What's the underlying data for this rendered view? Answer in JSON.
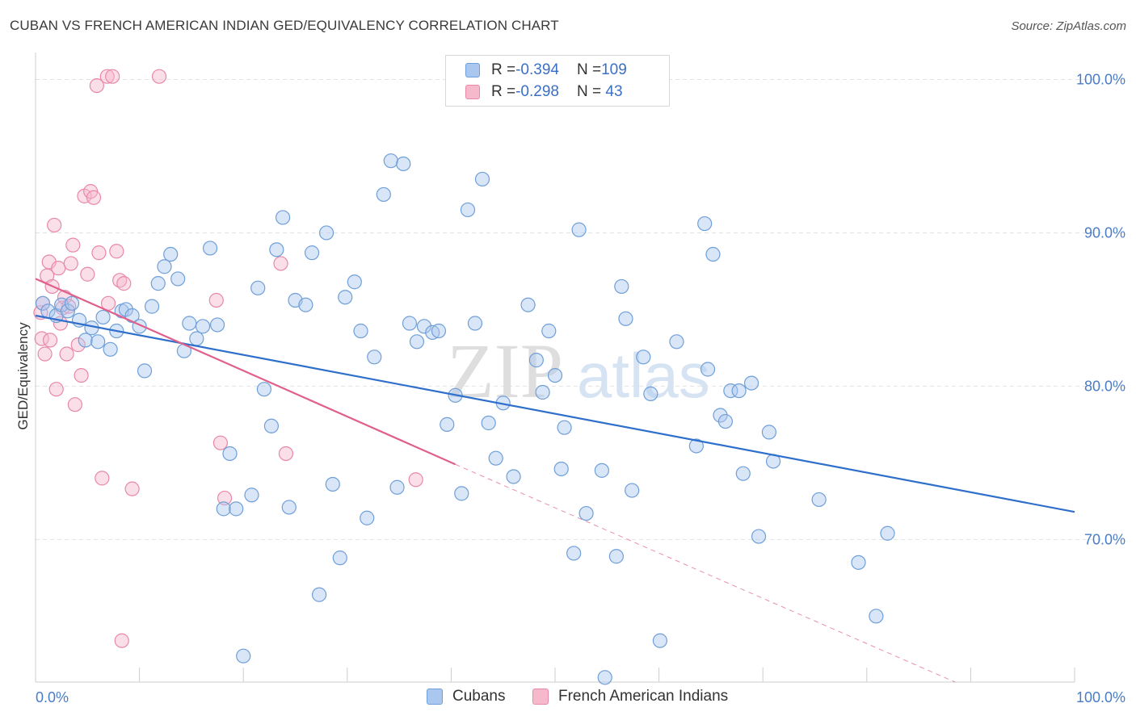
{
  "title": "CUBAN VS FRENCH AMERICAN INDIAN GED/EQUIVALENCY CORRELATION CHART",
  "source": "Source: ZipAtlas.com",
  "watermark": {
    "zip": "ZIP",
    "atlas": "atlas"
  },
  "colors": {
    "blue_fill": "#aac8ef",
    "blue_stroke": "#6f9fd8",
    "blue_line": "#2f6fcc",
    "pink_fill": "#f6b8cb",
    "pink_stroke": "#e888a8",
    "pink_line": "#e0608a",
    "grid": "#e2e2e2",
    "tick_text": "#4a7cc7"
  },
  "legend_top": {
    "rows": [
      {
        "r_label": "R = ",
        "r_value": "-0.394",
        "n_label": "N = ",
        "n_value": "109"
      },
      {
        "r_label": "R = ",
        "r_value": "-0.298",
        "n_label": "N = ",
        "n_value": " 43"
      }
    ]
  },
  "legend_bottom": [
    "Cubans",
    "French American Indians"
  ],
  "chart_data": {
    "type": "scatter",
    "title": "CUBAN VS FRENCH AMERICAN INDIAN GED/EQUIVALENCY CORRELATION CHART",
    "xlabel": "",
    "ylabel": "GED/Equivalency",
    "xlim": [
      0,
      100
    ],
    "ylim": [
      60.7,
      101.5
    ],
    "x_ticks": [
      "0.0%",
      "100.0%"
    ],
    "y_ticks": [
      {
        "value": 70,
        "label": "70.0%"
      },
      {
        "value": 80,
        "label": "80.0%"
      },
      {
        "value": 90,
        "label": "90.0%"
      },
      {
        "value": 100,
        "label": "100.0%"
      }
    ],
    "grid": true,
    "legend_placement": "bottom",
    "series": [
      {
        "name": "Cubans",
        "r": -0.394,
        "n": 109,
        "trend": {
          "x0": 0,
          "y0": 84.6,
          "x1": 100,
          "y1": 71.8
        },
        "points": [
          [
            0.7,
            85.4
          ],
          [
            1.2,
            84.9
          ],
          [
            2.0,
            84.6
          ],
          [
            2.5,
            85.3
          ],
          [
            3.1,
            84.9
          ],
          [
            3.5,
            85.4
          ],
          [
            4.2,
            84.3
          ],
          [
            4.8,
            83.0
          ],
          [
            5.4,
            83.8
          ],
          [
            6.0,
            82.9
          ],
          [
            6.5,
            84.5
          ],
          [
            7.2,
            82.4
          ],
          [
            7.8,
            83.6
          ],
          [
            8.3,
            84.9
          ],
          [
            8.7,
            85.0
          ],
          [
            9.3,
            84.6
          ],
          [
            10.0,
            83.9
          ],
          [
            10.5,
            81.0
          ],
          [
            11.2,
            85.2
          ],
          [
            11.8,
            86.7
          ],
          [
            12.4,
            87.8
          ],
          [
            13.0,
            88.6
          ],
          [
            13.7,
            87.0
          ],
          [
            14.3,
            82.3
          ],
          [
            14.8,
            84.1
          ],
          [
            15.5,
            83.1
          ],
          [
            16.1,
            83.9
          ],
          [
            16.8,
            89.0
          ],
          [
            17.5,
            84.0
          ],
          [
            18.1,
            72.0
          ],
          [
            18.7,
            75.6
          ],
          [
            19.3,
            72.0
          ],
          [
            20.0,
            62.4
          ],
          [
            20.8,
            72.9
          ],
          [
            21.4,
            86.4
          ],
          [
            22.0,
            79.8
          ],
          [
            22.7,
            77.4
          ],
          [
            23.2,
            88.9
          ],
          [
            23.8,
            91.0
          ],
          [
            24.4,
            72.1
          ],
          [
            25.0,
            85.6
          ],
          [
            26.0,
            85.3
          ],
          [
            26.6,
            88.7
          ],
          [
            27.3,
            66.4
          ],
          [
            28.0,
            90.0
          ],
          [
            28.6,
            73.6
          ],
          [
            29.3,
            68.8
          ],
          [
            29.8,
            85.8
          ],
          [
            30.7,
            86.8
          ],
          [
            31.3,
            83.6
          ],
          [
            31.9,
            71.4
          ],
          [
            32.6,
            81.9
          ],
          [
            33.5,
            92.5
          ],
          [
            34.2,
            94.7
          ],
          [
            34.8,
            73.4
          ],
          [
            35.4,
            94.5
          ],
          [
            36.0,
            84.1
          ],
          [
            36.7,
            82.9
          ],
          [
            37.4,
            83.9
          ],
          [
            38.2,
            83.5
          ],
          [
            38.8,
            83.6
          ],
          [
            39.6,
            77.5
          ],
          [
            40.4,
            79.4
          ],
          [
            41.0,
            73.0
          ],
          [
            41.6,
            91.5
          ],
          [
            42.3,
            84.1
          ],
          [
            43.0,
            93.5
          ],
          [
            43.6,
            77.6
          ],
          [
            44.3,
            75.3
          ],
          [
            45.0,
            78.9
          ],
          [
            46.0,
            74.1
          ],
          [
            47.4,
            85.3
          ],
          [
            48.2,
            81.7
          ],
          [
            48.8,
            79.6
          ],
          [
            49.4,
            83.6
          ],
          [
            50.0,
            80.7
          ],
          [
            50.6,
            74.6
          ],
          [
            50.9,
            77.3
          ],
          [
            51.8,
            69.1
          ],
          [
            52.3,
            90.2
          ],
          [
            53.0,
            71.7
          ],
          [
            54.5,
            74.5
          ],
          [
            54.8,
            61.0
          ],
          [
            55.9,
            68.9
          ],
          [
            56.4,
            86.5
          ],
          [
            56.8,
            84.4
          ],
          [
            57.4,
            73.2
          ],
          [
            58.5,
            81.9
          ],
          [
            59.2,
            79.5
          ],
          [
            60.1,
            63.4
          ],
          [
            61.7,
            82.9
          ],
          [
            63.6,
            76.1
          ],
          [
            64.4,
            90.6
          ],
          [
            64.7,
            81.1
          ],
          [
            65.2,
            88.6
          ],
          [
            65.9,
            78.1
          ],
          [
            66.4,
            77.7
          ],
          [
            66.9,
            79.7
          ],
          [
            67.7,
            79.7
          ],
          [
            68.1,
            74.3
          ],
          [
            68.9,
            80.2
          ],
          [
            69.6,
            70.2
          ],
          [
            70.6,
            77.0
          ],
          [
            71.0,
            75.1
          ],
          [
            75.4,
            72.6
          ],
          [
            79.2,
            68.5
          ],
          [
            80.9,
            65.0
          ],
          [
            82.0,
            70.4
          ]
        ]
      },
      {
        "name": "French American Indians",
        "r": -0.298,
        "n": 43,
        "trend": {
          "x0": 0,
          "y0": 87.0,
          "x1": 40.4,
          "y1": 74.9,
          "dash_to_x": 88.5,
          "dash_to_y": 60.7
        },
        "points": [
          [
            0.5,
            84.8
          ],
          [
            0.6,
            83.1
          ],
          [
            0.7,
            85.4
          ],
          [
            0.9,
            82.1
          ],
          [
            1.1,
            87.2
          ],
          [
            1.3,
            88.1
          ],
          [
            1.4,
            83.0
          ],
          [
            1.6,
            86.5
          ],
          [
            1.8,
            90.5
          ],
          [
            2.0,
            79.8
          ],
          [
            2.2,
            87.7
          ],
          [
            2.4,
            84.1
          ],
          [
            2.6,
            85.1
          ],
          [
            2.8,
            85.8
          ],
          [
            3.0,
            82.1
          ],
          [
            3.2,
            85.2
          ],
          [
            3.4,
            88.0
          ],
          [
            3.6,
            89.2
          ],
          [
            3.8,
            78.8
          ],
          [
            4.1,
            82.7
          ],
          [
            4.4,
            80.7
          ],
          [
            4.7,
            92.4
          ],
          [
            5.0,
            87.3
          ],
          [
            5.3,
            92.7
          ],
          [
            5.6,
            92.3
          ],
          [
            5.9,
            99.6
          ],
          [
            6.1,
            88.7
          ],
          [
            6.4,
            74.0
          ],
          [
            6.9,
            100.2
          ],
          [
            7.0,
            85.4
          ],
          [
            7.4,
            100.2
          ],
          [
            7.8,
            88.8
          ],
          [
            8.1,
            86.9
          ],
          [
            8.3,
            63.4
          ],
          [
            8.5,
            86.7
          ],
          [
            9.3,
            73.3
          ],
          [
            11.9,
            100.2
          ],
          [
            17.4,
            85.6
          ],
          [
            17.8,
            76.3
          ],
          [
            18.2,
            72.7
          ],
          [
            23.6,
            88.0
          ],
          [
            24.1,
            75.6
          ],
          [
            36.6,
            73.9
          ]
        ]
      }
    ]
  }
}
